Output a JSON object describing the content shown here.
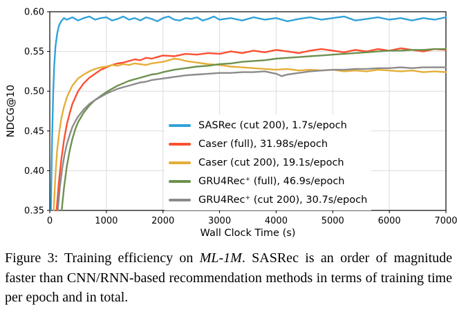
{
  "figure": {
    "caption_prefix": "Figure 3: Training efficiency on ",
    "caption_italic": "ML-1M",
    "caption_rest": ". SASRec is an order of magnitude faster than CNN/RNN-based recommendation methods in terms of training time per epoch and in total."
  },
  "chart_data": {
    "type": "line",
    "title": "",
    "xlabel": "Wall Clock Time (s)",
    "ylabel": "NDCG@10",
    "xlim": [
      0,
      7000
    ],
    "ylim": [
      0.35,
      0.6
    ],
    "x_ticks": [
      "0",
      "1000",
      "2000",
      "3000",
      "4000",
      "5000",
      "6000",
      "7000"
    ],
    "y_ticks": [
      "0.35",
      "0.40",
      "0.45",
      "0.50",
      "0.55",
      "0.60"
    ],
    "grid": true,
    "legend_position": "inside-center-right",
    "series": [
      {
        "name": "sasrec-cut200",
        "label": "SASRec (cut 200), 1.7s/epoch",
        "color": "#30a2da",
        "seconds_per_epoch": "1.7",
        "points": [
          [
            20,
            0.35
          ],
          [
            40,
            0.438
          ],
          [
            60,
            0.497
          ],
          [
            80,
            0.533
          ],
          [
            100,
            0.556
          ],
          [
            130,
            0.572
          ],
          [
            160,
            0.582
          ],
          [
            200,
            0.588
          ],
          [
            250,
            0.592
          ],
          [
            300,
            0.59
          ],
          [
            400,
            0.593
          ],
          [
            500,
            0.589
          ],
          [
            600,
            0.592
          ],
          [
            700,
            0.594
          ],
          [
            800,
            0.59
          ],
          [
            900,
            0.592
          ],
          [
            1000,
            0.593
          ],
          [
            1100,
            0.589
          ],
          [
            1200,
            0.591
          ],
          [
            1300,
            0.594
          ],
          [
            1400,
            0.59
          ],
          [
            1500,
            0.592
          ],
          [
            1600,
            0.589
          ],
          [
            1700,
            0.593
          ],
          [
            1800,
            0.591
          ],
          [
            1900,
            0.588
          ],
          [
            2000,
            0.592
          ],
          [
            2100,
            0.594
          ],
          [
            2200,
            0.59
          ],
          [
            2300,
            0.589
          ],
          [
            2400,
            0.592
          ],
          [
            2500,
            0.591
          ],
          [
            2600,
            0.593
          ],
          [
            2700,
            0.589
          ],
          [
            2800,
            0.591
          ],
          [
            2900,
            0.594
          ],
          [
            3000,
            0.59
          ],
          [
            3200,
            0.592
          ],
          [
            3400,
            0.589
          ],
          [
            3600,
            0.593
          ],
          [
            3800,
            0.59
          ],
          [
            4000,
            0.592
          ],
          [
            4200,
            0.588
          ],
          [
            4400,
            0.591
          ],
          [
            4600,
            0.593
          ],
          [
            4800,
            0.59
          ],
          [
            5000,
            0.592
          ],
          [
            5200,
            0.594
          ],
          [
            5400,
            0.589
          ],
          [
            5600,
            0.591
          ],
          [
            5800,
            0.593
          ],
          [
            6000,
            0.59
          ],
          [
            6200,
            0.592
          ],
          [
            6400,
            0.589
          ],
          [
            6600,
            0.592
          ],
          [
            6800,
            0.59
          ],
          [
            7000,
            0.593
          ]
        ]
      },
      {
        "name": "caser-full",
        "label": "Caser (full), 31.98s/epoch",
        "color": "#fc4f30",
        "seconds_per_epoch": "31.98",
        "points": [
          [
            120,
            0.35
          ],
          [
            160,
            0.385
          ],
          [
            200,
            0.412
          ],
          [
            250,
            0.438
          ],
          [
            300,
            0.458
          ],
          [
            350,
            0.472
          ],
          [
            400,
            0.484
          ],
          [
            450,
            0.492
          ],
          [
            500,
            0.5
          ],
          [
            600,
            0.51
          ],
          [
            700,
            0.517
          ],
          [
            800,
            0.522
          ],
          [
            900,
            0.527
          ],
          [
            1000,
            0.53
          ],
          [
            1100,
            0.533
          ],
          [
            1200,
            0.535
          ],
          [
            1300,
            0.536
          ],
          [
            1400,
            0.538
          ],
          [
            1500,
            0.54
          ],
          [
            1600,
            0.539
          ],
          [
            1700,
            0.542
          ],
          [
            1800,
            0.541
          ],
          [
            1900,
            0.543
          ],
          [
            2000,
            0.545
          ],
          [
            2200,
            0.544
          ],
          [
            2400,
            0.547
          ],
          [
            2600,
            0.546
          ],
          [
            2800,
            0.548
          ],
          [
            3000,
            0.547
          ],
          [
            3200,
            0.55
          ],
          [
            3400,
            0.548
          ],
          [
            3600,
            0.551
          ],
          [
            3800,
            0.549
          ],
          [
            4000,
            0.552
          ],
          [
            4200,
            0.55
          ],
          [
            4400,
            0.548
          ],
          [
            4600,
            0.551
          ],
          [
            4800,
            0.553
          ],
          [
            5000,
            0.551
          ],
          [
            5200,
            0.549
          ],
          [
            5400,
            0.552
          ],
          [
            5600,
            0.55
          ],
          [
            5800,
            0.553
          ],
          [
            6000,
            0.551
          ],
          [
            6200,
            0.554
          ],
          [
            6400,
            0.552
          ],
          [
            6600,
            0.55
          ],
          [
            6800,
            0.553
          ],
          [
            7000,
            0.552
          ]
        ]
      },
      {
        "name": "caser-cut200",
        "label": "Caser (cut 200), 19.1s/epoch",
        "color": "#e5ae38",
        "seconds_per_epoch": "19.1",
        "points": [
          [
            70,
            0.35
          ],
          [
            100,
            0.395
          ],
          [
            130,
            0.425
          ],
          [
            170,
            0.45
          ],
          [
            210,
            0.468
          ],
          [
            250,
            0.48
          ],
          [
            300,
            0.492
          ],
          [
            350,
            0.5
          ],
          [
            400,
            0.507
          ],
          [
            500,
            0.516
          ],
          [
            600,
            0.521
          ],
          [
            700,
            0.525
          ],
          [
            800,
            0.528
          ],
          [
            900,
            0.53
          ],
          [
            1000,
            0.531
          ],
          [
            1100,
            0.533
          ],
          [
            1200,
            0.532
          ],
          [
            1300,
            0.534
          ],
          [
            1400,
            0.533
          ],
          [
            1500,
            0.535
          ],
          [
            1600,
            0.534
          ],
          [
            1700,
            0.533
          ],
          [
            1800,
            0.535
          ],
          [
            1900,
            0.536
          ],
          [
            2000,
            0.537
          ],
          [
            2100,
            0.539
          ],
          [
            2200,
            0.541
          ],
          [
            2300,
            0.54
          ],
          [
            2400,
            0.538
          ],
          [
            2600,
            0.536
          ],
          [
            2800,
            0.534
          ],
          [
            3000,
            0.533
          ],
          [
            3200,
            0.531
          ],
          [
            3400,
            0.53
          ],
          [
            3600,
            0.529
          ],
          [
            3800,
            0.528
          ],
          [
            4000,
            0.527
          ],
          [
            4200,
            0.528
          ],
          [
            4400,
            0.526
          ],
          [
            4600,
            0.527
          ],
          [
            4800,
            0.526
          ],
          [
            5000,
            0.527
          ],
          [
            5200,
            0.525
          ],
          [
            5400,
            0.526
          ],
          [
            5600,
            0.525
          ],
          [
            5800,
            0.527
          ],
          [
            6000,
            0.526
          ],
          [
            6200,
            0.525
          ],
          [
            6400,
            0.526
          ],
          [
            6600,
            0.524
          ],
          [
            6800,
            0.525
          ],
          [
            7000,
            0.524
          ]
        ]
      },
      {
        "name": "gru4rec-plus-full",
        "label": "GRU4Rec⁺ (full), 46.9s/epoch",
        "color": "#6d904f",
        "seconds_per_epoch": "46.9",
        "points": [
          [
            210,
            0.35
          ],
          [
            250,
            0.378
          ],
          [
            300,
            0.405
          ],
          [
            350,
            0.425
          ],
          [
            400,
            0.44
          ],
          [
            450,
            0.452
          ],
          [
            500,
            0.461
          ],
          [
            600,
            0.473
          ],
          [
            700,
            0.482
          ],
          [
            800,
            0.489
          ],
          [
            900,
            0.494
          ],
          [
            1000,
            0.499
          ],
          [
            1100,
            0.503
          ],
          [
            1200,
            0.507
          ],
          [
            1300,
            0.51
          ],
          [
            1400,
            0.513
          ],
          [
            1500,
            0.515
          ],
          [
            1600,
            0.517
          ],
          [
            1700,
            0.519
          ],
          [
            1800,
            0.521
          ],
          [
            1900,
            0.522
          ],
          [
            2000,
            0.524
          ],
          [
            2200,
            0.527
          ],
          [
            2400,
            0.529
          ],
          [
            2600,
            0.531
          ],
          [
            2800,
            0.532
          ],
          [
            3000,
            0.534
          ],
          [
            3200,
            0.535
          ],
          [
            3400,
            0.537
          ],
          [
            3600,
            0.538
          ],
          [
            3800,
            0.539
          ],
          [
            4000,
            0.541
          ],
          [
            4200,
            0.542
          ],
          [
            4400,
            0.543
          ],
          [
            4600,
            0.544
          ],
          [
            4800,
            0.545
          ],
          [
            5000,
            0.546
          ],
          [
            5200,
            0.547
          ],
          [
            5400,
            0.548
          ],
          [
            5600,
            0.549
          ],
          [
            5800,
            0.55
          ],
          [
            6000,
            0.551
          ],
          [
            6200,
            0.551
          ],
          [
            6400,
            0.552
          ],
          [
            6600,
            0.552
          ],
          [
            6800,
            0.553
          ],
          [
            7000,
            0.553
          ]
        ]
      },
      {
        "name": "gru4rec-plus-cut200",
        "label": "GRU4Rec⁺ (cut 200), 30.7s/epoch",
        "color": "#8b8b8b",
        "seconds_per_epoch": "30.7",
        "points": [
          [
            140,
            0.35
          ],
          [
            180,
            0.38
          ],
          [
            220,
            0.403
          ],
          [
            260,
            0.42
          ],
          [
            300,
            0.433
          ],
          [
            350,
            0.445
          ],
          [
            400,
            0.455
          ],
          [
            450,
            0.462
          ],
          [
            500,
            0.468
          ],
          [
            600,
            0.477
          ],
          [
            700,
            0.484
          ],
          [
            800,
            0.489
          ],
          [
            900,
            0.493
          ],
          [
            1000,
            0.497
          ],
          [
            1100,
            0.5
          ],
          [
            1200,
            0.503
          ],
          [
            1300,
            0.505
          ],
          [
            1400,
            0.507
          ],
          [
            1500,
            0.509
          ],
          [
            1600,
            0.511
          ],
          [
            1700,
            0.512
          ],
          [
            1800,
            0.514
          ],
          [
            1900,
            0.515
          ],
          [
            2000,
            0.516
          ],
          [
            2200,
            0.518
          ],
          [
            2400,
            0.52
          ],
          [
            2600,
            0.521
          ],
          [
            2800,
            0.522
          ],
          [
            3000,
            0.523
          ],
          [
            3200,
            0.523
          ],
          [
            3400,
            0.524
          ],
          [
            3600,
            0.524
          ],
          [
            3800,
            0.525
          ],
          [
            4000,
            0.522
          ],
          [
            4100,
            0.519
          ],
          [
            4200,
            0.521
          ],
          [
            4400,
            0.523
          ],
          [
            4600,
            0.525
          ],
          [
            4800,
            0.526
          ],
          [
            5000,
            0.527
          ],
          [
            5200,
            0.527
          ],
          [
            5400,
            0.528
          ],
          [
            5600,
            0.528
          ],
          [
            5800,
            0.529
          ],
          [
            6000,
            0.529
          ],
          [
            6200,
            0.53
          ],
          [
            6400,
            0.529
          ],
          [
            6600,
            0.53
          ],
          [
            6800,
            0.53
          ],
          [
            7000,
            0.53
          ]
        ]
      }
    ]
  }
}
